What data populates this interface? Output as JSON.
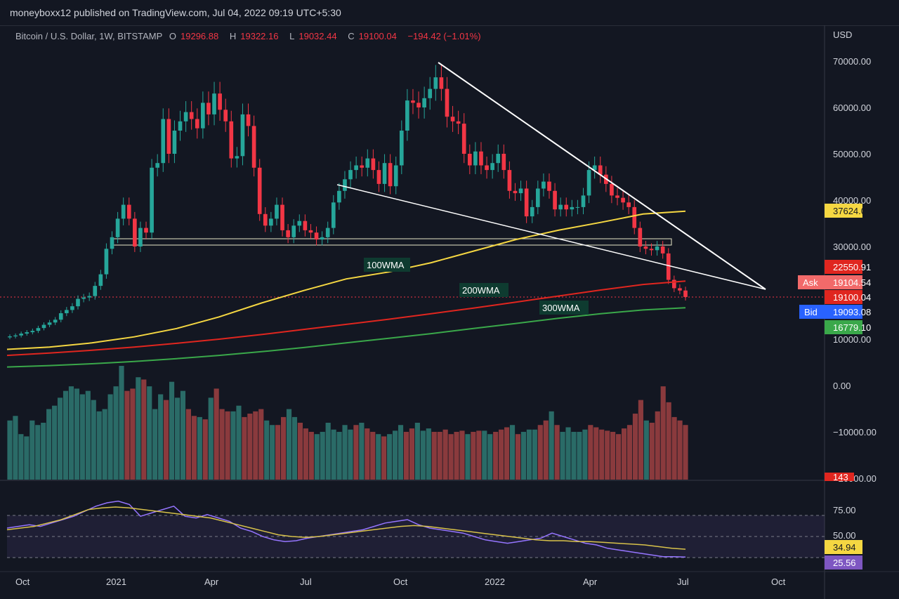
{
  "header": {
    "publisher": "moneyboxx12 published on TradingView.com, Jul 04, 2022 09:19 UTC+5:30"
  },
  "legend": {
    "symbol": "Bitcoin / U.S. Dollar, 1W, BITSTAMP",
    "open_label": "O",
    "open": "19296.88",
    "high_label": "H",
    "high": "19322.16",
    "low_label": "L",
    "low": "19032.44",
    "close_label": "C",
    "close": "19100.04",
    "change": "−194.42 (−1.01%)"
  },
  "axis": {
    "currency": "USD"
  },
  "colors": {
    "bg": "#131722",
    "up": "#26a69a",
    "down": "#f23645",
    "wma100": "#f5d742",
    "wma200": "#e0261f",
    "wma300": "#3aa84a",
    "rsi": "#9575ff",
    "rsi_ma": "#d8c24a"
  },
  "chart_data": [
    {
      "type": "candlestick",
      "title": "Bitcoin / U.S. Dollar, 1W, BITSTAMP",
      "ylim": [
        4000,
        74000
      ],
      "y_ticks": [
        "70000.00",
        "60000.00",
        "50000.00",
        "40000.00",
        "30000.00",
        "10000.00"
      ],
      "x_ticks": [
        "Oct",
        "2021",
        "Apr",
        "Jul",
        "Oct",
        "2022",
        "Apr",
        "Jul",
        "Oct"
      ],
      "approx_close_series": [
        10600,
        10800,
        11200,
        11500,
        11800,
        12400,
        13100,
        13600,
        14200,
        15600,
        16300,
        17100,
        18700,
        19000,
        19300,
        21500,
        24000,
        29500,
        32000,
        36000,
        39000,
        36000,
        30000,
        34000,
        33000,
        47000,
        48000,
        57500,
        50000,
        55000,
        57000,
        59000,
        57500,
        55500,
        61000,
        58500,
        63000,
        59500,
        57000,
        49000,
        49500,
        58500,
        56000,
        47000,
        37000,
        34500,
        36000,
        39000,
        33500,
        32000,
        34500,
        35500,
        33500,
        33000,
        31500,
        32000,
        34000,
        39500,
        42000,
        44500,
        46500,
        47500,
        47000,
        49000,
        46500,
        43500,
        48000,
        43000,
        47500,
        55000,
        61500,
        61000,
        60000,
        62000,
        64000,
        66500,
        64000,
        58000,
        57000,
        56500,
        50000,
        47500,
        50500,
        47500,
        46500,
        48000,
        50000,
        46500,
        42000,
        41500,
        42500,
        36500,
        38500,
        42500,
        44000,
        42000,
        38000,
        39000,
        38000,
        38500,
        38500,
        41000,
        46500,
        47500,
        45500,
        43500,
        41000,
        40500,
        39500,
        38500,
        34000,
        30000,
        29500,
        29200,
        30000,
        28500,
        22800,
        21000,
        20500,
        19100
      ]
    },
    {
      "type": "line",
      "title": "Moving averages",
      "series": [
        {
          "name": "100WMA",
          "values": [
            7800,
            8300,
            9200,
            10500,
            12300,
            14800,
            17800,
            20500,
            23000,
            24500,
            26500,
            29000,
            31500,
            33500,
            35200,
            37000,
            37624.07
          ],
          "last": "37624.07"
        },
        {
          "name": "200WMA",
          "values": [
            6500,
            7000,
            7600,
            8300,
            9100,
            10000,
            11000,
            12100,
            13200,
            14300,
            15500,
            16700,
            18000,
            19300,
            20600,
            21800,
            22550.91
          ],
          "last": "22550.91"
        },
        {
          "name": "300WMA",
          "values": [
            4000,
            4300,
            4700,
            5200,
            5800,
            6500,
            7300,
            8200,
            9200,
            10200,
            11200,
            12300,
            13400,
            14500,
            15500,
            16300,
            16779.1
          ],
          "last": "16779.10"
        }
      ],
      "labels": {
        "wma100": "100WMA",
        "wma200": "200WMA",
        "wma300": "300WMA"
      }
    },
    {
      "type": "bar",
      "title": "Volume",
      "y_ticks": [
        "0.00",
        "−10000.00",
        "−20000.00"
      ],
      "values": [
        52,
        56,
        40,
        38,
        52,
        48,
        50,
        62,
        65,
        72,
        78,
        82,
        80,
        75,
        78,
        70,
        60,
        62,
        75,
        82,
        100,
        78,
        80,
        90,
        88,
        82,
        62,
        75,
        70,
        86,
        72,
        78,
        62,
        56,
        55,
        53,
        72,
        80,
        62,
        60,
        60,
        65,
        55,
        58,
        60,
        62,
        52,
        48,
        48,
        55,
        62,
        55,
        50,
        45,
        42,
        40,
        42,
        50,
        44,
        42,
        48,
        44,
        48,
        50,
        45,
        42,
        40,
        38,
        40,
        43,
        48,
        42,
        45,
        50,
        43,
        45,
        42,
        42,
        44,
        40,
        42,
        43,
        40,
        42,
        43,
        43,
        40,
        42,
        44,
        46,
        48,
        40,
        42,
        44,
        44,
        48,
        52,
        60,
        48,
        42,
        46,
        42,
        42,
        44,
        48,
        46,
        44,
        43,
        42,
        40,
        45,
        48,
        58,
        70,
        52,
        50,
        60,
        82,
        68,
        55,
        52,
        48
      ]
    },
    {
      "type": "line",
      "title": "RSI",
      "ylim": [
        20,
        100
      ],
      "y_ticks": [
        "75.00",
        "50.00"
      ],
      "series": [
        {
          "name": "RSI",
          "values": [
            60,
            62,
            64,
            62,
            66,
            70,
            74,
            80,
            86,
            90,
            92,
            88,
            74,
            78,
            82,
            86,
            74,
            72,
            76,
            72,
            68,
            60,
            56,
            50,
            46,
            44,
            45,
            48,
            50,
            52,
            54,
            56,
            58,
            62,
            66,
            68,
            70,
            64,
            60,
            58,
            56,
            54,
            50,
            46,
            44,
            42,
            44,
            46,
            48,
            54,
            50,
            46,
            42,
            40,
            36,
            34,
            32,
            30,
            28,
            26,
            26,
            25.56
          ],
          "last": "25.56"
        },
        {
          "name": "RSI MA",
          "values": [
            58,
            60,
            62,
            66,
            70,
            76,
            82,
            84,
            85,
            84,
            82,
            80,
            78,
            76,
            74,
            72,
            68,
            64,
            60,
            56,
            52,
            50,
            49,
            50,
            52,
            54,
            56,
            58,
            60,
            62,
            63,
            62,
            60,
            58,
            56,
            54,
            52,
            50,
            48,
            46,
            45,
            45,
            44,
            44,
            43,
            42,
            41,
            40,
            38,
            36,
            34.94
          ],
          "last": "34.94"
        }
      ]
    }
  ],
  "price_tags": {
    "wma100": "37624.07",
    "wma200": "22550.91",
    "ask_label": "Ask",
    "ask": "19104.54",
    "last": "19100.04",
    "bid_label": "Bid",
    "bid": "19093.08",
    "wma300": "16779.10",
    "volume_tag": "143",
    "rsi_ma": "34.94",
    "rsi": "25.56"
  }
}
